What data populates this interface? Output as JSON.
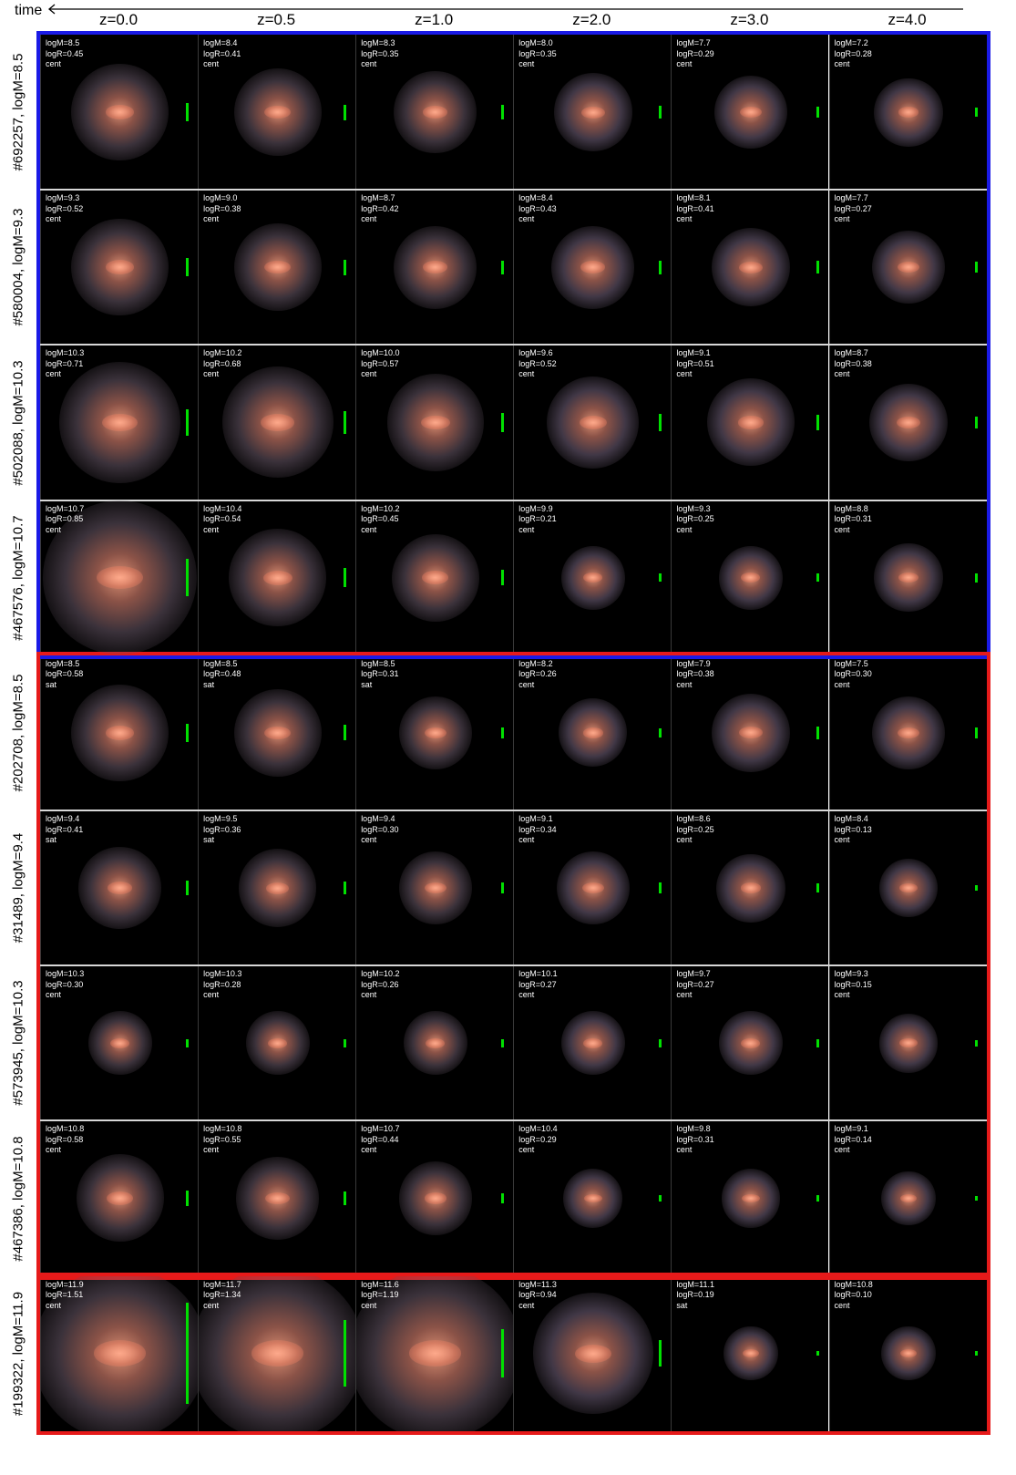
{
  "figure": {
    "time_label": "time",
    "redshifts": [
      "z=0.0",
      "z=0.5",
      "z=1.0",
      "z=2.0",
      "z=3.0",
      "z=4.0"
    ],
    "frame_colors": {
      "central_group": "#1a1ae6",
      "satellite_group": "#e61a1a"
    },
    "rows": [
      {
        "label": "#692257, logM=8.5",
        "group": "central_group",
        "panels": [
          {
            "logM": "logM=8.5",
            "logR": "logR=0.45",
            "status": "cent",
            "scale": 0.12
          },
          {
            "logM": "logM=8.4",
            "logR": "logR=0.41",
            "status": "cent",
            "scale": 0.1
          },
          {
            "logM": "logM=8.3",
            "logR": "logR=0.35",
            "status": "cent",
            "scale": 0.09
          },
          {
            "logM": "logM=8.0",
            "logR": "logR=0.35",
            "status": "cent",
            "scale": 0.08
          },
          {
            "logM": "logM=7.7",
            "logR": "logR=0.29",
            "status": "cent",
            "scale": 0.07
          },
          {
            "logM": "logM=7.2",
            "logR": "logR=0.28",
            "status": "cent",
            "scale": 0.06
          }
        ]
      },
      {
        "label": "#580004, logM=9.3",
        "group": "central_group",
        "panels": [
          {
            "logM": "logM=9.3",
            "logR": "logR=0.52",
            "status": "cent",
            "scale": 0.12
          },
          {
            "logM": "logM=9.0",
            "logR": "logR=0.38",
            "status": "cent",
            "scale": 0.1
          },
          {
            "logM": "logM=8.7",
            "logR": "logR=0.42",
            "status": "cent",
            "scale": 0.09
          },
          {
            "logM": "logM=8.4",
            "logR": "logR=0.43",
            "status": "cent",
            "scale": 0.09
          },
          {
            "logM": "logM=8.1",
            "logR": "logR=0.41",
            "status": "cent",
            "scale": 0.08
          },
          {
            "logM": "logM=7.7",
            "logR": "logR=0.27",
            "status": "cent",
            "scale": 0.07
          }
        ]
      },
      {
        "label": "#502088, logM=10.3",
        "group": "central_group",
        "panels": [
          {
            "logM": "logM=10.3",
            "logR": "logR=0.71",
            "status": "cent",
            "scale": 0.17
          },
          {
            "logM": "logM=10.2",
            "logR": "logR=0.68",
            "status": "cent",
            "scale": 0.15
          },
          {
            "logM": "logM=10.0",
            "logR": "logR=0.57",
            "status": "cent",
            "scale": 0.12
          },
          {
            "logM": "logM=9.6",
            "logR": "logR=0.52",
            "status": "cent",
            "scale": 0.11
          },
          {
            "logM": "logM=9.1",
            "logR": "logR=0.51",
            "status": "cent",
            "scale": 0.1
          },
          {
            "logM": "logM=8.7",
            "logR": "logR=0.38",
            "status": "cent",
            "scale": 0.08
          }
        ]
      },
      {
        "label": "#467576, logM=10.7",
        "group": "central_group",
        "panels": [
          {
            "logM": "logM=10.7",
            "logR": "logR=0.85",
            "status": "cent",
            "scale": 0.24
          },
          {
            "logM": "logM=10.4",
            "logR": "logR=0.54",
            "status": "cent",
            "scale": 0.12
          },
          {
            "logM": "logM=10.2",
            "logR": "logR=0.45",
            "status": "cent",
            "scale": 0.1
          },
          {
            "logM": "logM=9.9",
            "logR": "logR=0.21",
            "status": "cent",
            "scale": 0.05
          },
          {
            "logM": "logM=9.3",
            "logR": "logR=0.25",
            "status": "cent",
            "scale": 0.05
          },
          {
            "logM": "logM=8.8",
            "logR": "logR=0.31",
            "status": "cent",
            "scale": 0.06
          }
        ]
      },
      {
        "label": "#202708, logM=8.5",
        "group": "satellite_group",
        "panels": [
          {
            "logM": "logM=8.5",
            "logR": "logR=0.58",
            "status": "sat",
            "scale": 0.12
          },
          {
            "logM": "logM=8.5",
            "logR": "logR=0.48",
            "status": "sat",
            "scale": 0.1
          },
          {
            "logM": "logM=8.5",
            "logR": "logR=0.31",
            "status": "sat",
            "scale": 0.07
          },
          {
            "logM": "logM=8.2",
            "logR": "logR=0.26",
            "status": "cent",
            "scale": 0.06
          },
          {
            "logM": "logM=7.9",
            "logR": "logR=0.38",
            "status": "cent",
            "scale": 0.08
          },
          {
            "logM": "logM=7.5",
            "logR": "logR=0.30",
            "status": "cent",
            "scale": 0.07
          }
        ]
      },
      {
        "label": "#31489, logM=9.4",
        "group": "satellite_group",
        "panels": [
          {
            "logM": "logM=9.4",
            "logR": "logR=0.41",
            "status": "sat",
            "scale": 0.09
          },
          {
            "logM": "logM=9.5",
            "logR": "logR=0.36",
            "status": "sat",
            "scale": 0.08
          },
          {
            "logM": "logM=9.4",
            "logR": "logR=0.30",
            "status": "cent",
            "scale": 0.07
          },
          {
            "logM": "logM=9.1",
            "logR": "logR=0.34",
            "status": "cent",
            "scale": 0.07
          },
          {
            "logM": "logM=8.6",
            "logR": "logR=0.25",
            "status": "cent",
            "scale": 0.06
          },
          {
            "logM": "logM=8.4",
            "logR": "logR=0.13",
            "status": "cent",
            "scale": 0.04
          }
        ]
      },
      {
        "label": "#573945, logM=10.3",
        "group": "satellite_group",
        "panels": [
          {
            "logM": "logM=10.3",
            "logR": "logR=0.30",
            "status": "cent",
            "scale": 0.05
          },
          {
            "logM": "logM=10.3",
            "logR": "logR=0.28",
            "status": "cent",
            "scale": 0.05
          },
          {
            "logM": "logM=10.2",
            "logR": "logR=0.26",
            "status": "cent",
            "scale": 0.05
          },
          {
            "logM": "logM=10.1",
            "logR": "logR=0.27",
            "status": "cent",
            "scale": 0.05
          },
          {
            "logM": "logM=9.7",
            "logR": "logR=0.27",
            "status": "cent",
            "scale": 0.05
          },
          {
            "logM": "logM=9.3",
            "logR": "logR=0.15",
            "status": "cent",
            "scale": 0.04
          }
        ]
      },
      {
        "label": "#467386, logM=10.8",
        "group": "satellite_group",
        "panels": [
          {
            "logM": "logM=10.8",
            "logR": "logR=0.58",
            "status": "cent",
            "scale": 0.1
          },
          {
            "logM": "logM=10.8",
            "logR": "logR=0.55",
            "status": "cent",
            "scale": 0.09
          },
          {
            "logM": "logM=10.7",
            "logR": "logR=0.44",
            "status": "cent",
            "scale": 0.07
          },
          {
            "logM": "logM=10.4",
            "logR": "logR=0.29",
            "status": "cent",
            "scale": 0.04
          },
          {
            "logM": "logM=9.8",
            "logR": "logR=0.31",
            "status": "cent",
            "scale": 0.04
          },
          {
            "logM": "logM=9.1",
            "logR": "logR=0.14",
            "status": "cent",
            "scale": 0.03
          }
        ]
      },
      {
        "label": "#199322, logM=11.9",
        "group": "satellite_group",
        "panels": [
          {
            "logM": "logM=11.9",
            "logR": "logR=1.51",
            "status": "cent",
            "scale": 0.65
          },
          {
            "logM": "logM=11.7",
            "logR": "logR=1.34",
            "status": "cent",
            "scale": 0.43
          },
          {
            "logM": "logM=11.6",
            "logR": "logR=1.19",
            "status": "cent",
            "scale": 0.31
          },
          {
            "logM": "logM=11.3",
            "logR": "logR=0.94",
            "status": "cent",
            "scale": 0.17
          },
          {
            "logM": "logM=11.1",
            "logR": "logR=0.19",
            "status": "sat",
            "scale": 0.03
          },
          {
            "logM": "logM=10.8",
            "logR": "logR=0.10",
            "status": "cent",
            "scale": 0.03
          }
        ]
      }
    ]
  }
}
